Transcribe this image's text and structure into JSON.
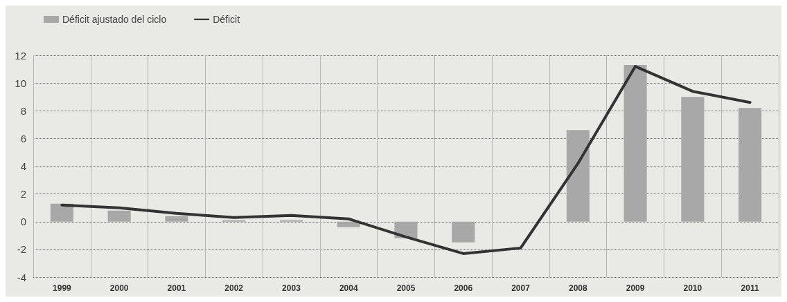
{
  "chart_data": {
    "type": "bar",
    "categories": [
      "1999",
      "2000",
      "2001",
      "2002",
      "2003",
      "2004",
      "2005",
      "2006",
      "2007",
      "2008",
      "2009",
      "2010",
      "2011"
    ],
    "series": [
      {
        "name": "Déficit ajustado del ciclo",
        "color": "#a8a8a8",
        "values": [
          1.3,
          0.8,
          0.4,
          0.1,
          0.1,
          -0.4,
          -1.2,
          -1.5,
          0,
          6.6,
          11.3,
          9.0,
          8.2
        ]
      },
      {
        "name": "Déficit",
        "type": "line",
        "color": "#333333",
        "values": [
          1.2,
          1.0,
          0.6,
          0.3,
          0.45,
          0.2,
          -1.1,
          -2.3,
          -1.9,
          4.2,
          11.2,
          9.4,
          8.6
        ]
      }
    ],
    "ylim": [
      -4,
      12
    ],
    "yticks": [
      -4,
      -2,
      0,
      2,
      4,
      6,
      8,
      10,
      12
    ],
    "grid": true,
    "legend": "top left",
    "marker": "none",
    "line_style": "solid"
  }
}
